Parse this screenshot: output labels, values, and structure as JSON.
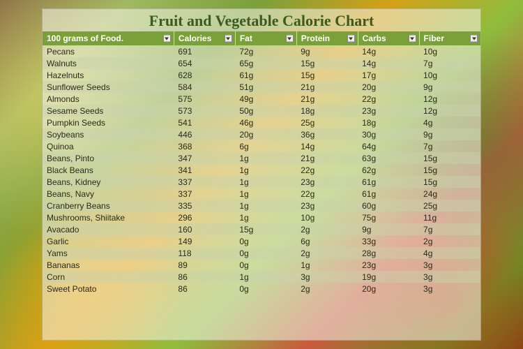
{
  "title": "Fruit and Vegetable Calorie Chart",
  "title_color": "#3a5a1f",
  "title_fontsize": 22,
  "header_bg": "#7aa03a",
  "header_fontsize": 12,
  "row_fontsize": 12,
  "row_text_color": "#2a2a1a",
  "row_colors": {
    "odd": "rgba(255,255,250,0.0)",
    "even": "rgba(200,210,170,0.45)"
  },
  "columns": [
    {
      "key": "food",
      "label": "100 grams of Food."
    },
    {
      "key": "calories",
      "label": "Calories"
    },
    {
      "key": "fat",
      "label": "Fat"
    },
    {
      "key": "protein",
      "label": "Protein"
    },
    {
      "key": "carbs",
      "label": "Carbs"
    },
    {
      "key": "fiber",
      "label": "Fiber"
    }
  ],
  "rows": [
    {
      "food": "Pecans",
      "calories": "691",
      "fat": "72g",
      "protein": "9g",
      "carbs": "14g",
      "fiber": "10g"
    },
    {
      "food": "Walnuts",
      "calories": "654",
      "fat": "65g",
      "protein": "15g",
      "carbs": "14g",
      "fiber": "7g"
    },
    {
      "food": "Hazelnuts",
      "calories": "628",
      "fat": "61g",
      "protein": "15g",
      "carbs": "17g",
      "fiber": "10g"
    },
    {
      "food": "Sunflower Seeds",
      "calories": "584",
      "fat": "51g",
      "protein": "21g",
      "carbs": "20g",
      "fiber": "9g"
    },
    {
      "food": "Almonds",
      "calories": "575",
      "fat": "49g",
      "protein": "21g",
      "carbs": "22g",
      "fiber": "12g"
    },
    {
      "food": "Sesame Seeds",
      "calories": "573",
      "fat": "50g",
      "protein": "18g",
      "carbs": "23g",
      "fiber": "12g"
    },
    {
      "food": "Pumpkin Seeds",
      "calories": "541",
      "fat": "46g",
      "protein": "25g",
      "carbs": "18g",
      "fiber": "4g"
    },
    {
      "food": "Soybeans",
      "calories": "446",
      "fat": "20g",
      "protein": "36g",
      "carbs": "30g",
      "fiber": "9g"
    },
    {
      "food": "Quinoa",
      "calories": "368",
      "fat": "6g",
      "protein": "14g",
      "carbs": "64g",
      "fiber": "7g"
    },
    {
      "food": "Beans, Pinto",
      "calories": "347",
      "fat": "1g",
      "protein": "21g",
      "carbs": "63g",
      "fiber": "15g"
    },
    {
      "food": "Black Beans",
      "calories": "341",
      "fat": "1g",
      "protein": "22g",
      "carbs": "62g",
      "fiber": "15g"
    },
    {
      "food": "Beans, Kidney",
      "calories": "337",
      "fat": "1g",
      "protein": "23g",
      "carbs": "61g",
      "fiber": "15g"
    },
    {
      "food": "Beans, Navy",
      "calories": "337",
      "fat": "1g",
      "protein": "22g",
      "carbs": "61g",
      "fiber": "24g"
    },
    {
      "food": "Cranberry Beans",
      "calories": "335",
      "fat": "1g",
      "protein": "23g",
      "carbs": "60g",
      "fiber": "25g"
    },
    {
      "food": "Mushrooms, Shiitake",
      "calories": "296",
      "fat": "1g",
      "protein": "10g",
      "carbs": "75g",
      "fiber": "11g"
    },
    {
      "food": "Avacado",
      "calories": "160",
      "fat": "15g",
      "protein": "2g",
      "carbs": "9g",
      "fiber": "7g"
    },
    {
      "food": "Garlic",
      "calories": "149",
      "fat": "0g",
      "protein": "6g",
      "carbs": "33g",
      "fiber": "2g"
    },
    {
      "food": "Yams",
      "calories": "118",
      "fat": "0g",
      "protein": "2g",
      "carbs": "28g",
      "fiber": "4g"
    },
    {
      "food": "Bananas",
      "calories": "89",
      "fat": "0g",
      "protein": "1g",
      "carbs": "23g",
      "fiber": "3g"
    },
    {
      "food": "Corn",
      "calories": "86",
      "fat": "1g",
      "protein": "3g",
      "carbs": "19g",
      "fiber": "3g"
    },
    {
      "food": "Sweet Potato",
      "calories": "86",
      "fat": "0g",
      "protein": "2g",
      "carbs": "20g",
      "fiber": "3g"
    }
  ]
}
